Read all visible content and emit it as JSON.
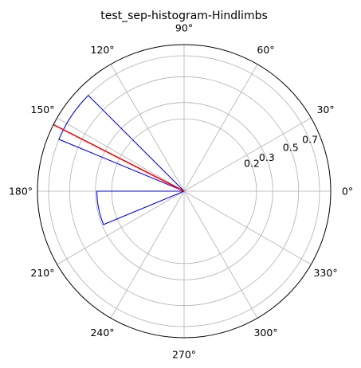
{
  "chart_data": {
    "type": "polar_histogram",
    "title": "test_sep-histogram-Hindlimbs",
    "angle_ticks_deg": [
      0,
      30,
      60,
      90,
      120,
      150,
      180,
      210,
      240,
      270,
      300,
      330
    ],
    "angle_tick_labels": [
      "0°",
      "30°",
      "60°",
      "90°",
      "120°",
      "150°",
      "180°",
      "210°",
      "240°",
      "270°",
      "300°",
      "330°"
    ],
    "radial_ticks": [
      0.2,
      0.3,
      0.5,
      0.7
    ],
    "radial_tick_labels": [
      "0.2",
      "0.3",
      "0.5",
      "0.7"
    ],
    "r_max": 0.82,
    "radial_scale": "sqrt",
    "radial_label_angle_deg": 22.5,
    "grid": true,
    "bins": [
      {
        "theta_start_deg": 135,
        "theta_end_deg": 157.5,
        "value": 0.7
      },
      {
        "theta_start_deg": 180,
        "theta_end_deg": 202.5,
        "value": 0.29
      }
    ],
    "bar_edge_color": "#0000ff",
    "mean_direction": {
      "theta_deg": 153,
      "r": 0.82,
      "color": "#ff0000"
    }
  }
}
